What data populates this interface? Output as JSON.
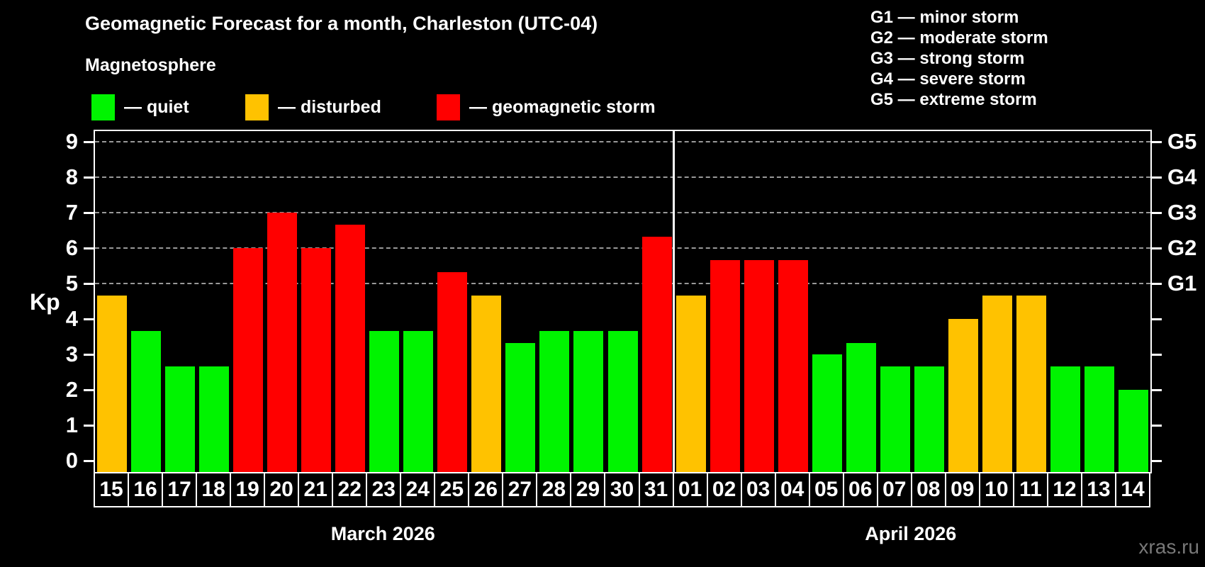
{
  "watermark": "xras.ru",
  "legend": {
    "title": "Magnetosphere",
    "items": [
      {
        "key": "quiet",
        "label": "— quiet"
      },
      {
        "key": "disturbed",
        "label": "— disturbed"
      },
      {
        "key": "storm",
        "label": "— geomagnetic storm"
      }
    ]
  },
  "g_scale_legend": [
    "G1 — minor storm",
    "G2 — moderate storm",
    "G3 — strong storm",
    "G4 — severe storm",
    "G5 — extreme storm"
  ],
  "chart_data": {
    "type": "bar",
    "title": "Geomagnetic Forecast for a month, Charleston (UTC-04)",
    "ylabel": "Kp",
    "ylim": [
      0,
      9
    ],
    "yticks": [
      0,
      1,
      2,
      3,
      4,
      5,
      6,
      7,
      8,
      9
    ],
    "gridlines_at": [
      5,
      6,
      7,
      8,
      9
    ],
    "grid": "dashed horizontal at storm levels only",
    "legend_position": "top-left",
    "right_axis": [
      {
        "kp": 5,
        "label": "G1"
      },
      {
        "kp": 6,
        "label": "G2"
      },
      {
        "kp": 7,
        "label": "G3"
      },
      {
        "kp": 8,
        "label": "G4"
      },
      {
        "kp": 9,
        "label": "G5"
      }
    ],
    "status_colors": {
      "quiet": "#00f400",
      "disturbed": "#ffc200",
      "storm": "#ff0000"
    },
    "months": [
      {
        "label": "March 2026",
        "bars": [
          {
            "day": "15",
            "kp": 4.67,
            "status": "disturbed"
          },
          {
            "day": "16",
            "kp": 3.67,
            "status": "quiet"
          },
          {
            "day": "17",
            "kp": 2.67,
            "status": "quiet"
          },
          {
            "day": "18",
            "kp": 2.67,
            "status": "quiet"
          },
          {
            "day": "19",
            "kp": 6.0,
            "status": "storm"
          },
          {
            "day": "20",
            "kp": 7.0,
            "status": "storm"
          },
          {
            "day": "21",
            "kp": 6.0,
            "status": "storm"
          },
          {
            "day": "22",
            "kp": 6.67,
            "status": "storm"
          },
          {
            "day": "23",
            "kp": 3.67,
            "status": "quiet"
          },
          {
            "day": "24",
            "kp": 3.67,
            "status": "quiet"
          },
          {
            "day": "25",
            "kp": 5.33,
            "status": "storm"
          },
          {
            "day": "26",
            "kp": 4.67,
            "status": "disturbed"
          },
          {
            "day": "27",
            "kp": 3.33,
            "status": "quiet"
          },
          {
            "day": "28",
            "kp": 3.67,
            "status": "quiet"
          },
          {
            "day": "29",
            "kp": 3.67,
            "status": "quiet"
          },
          {
            "day": "30",
            "kp": 3.67,
            "status": "quiet"
          },
          {
            "day": "31",
            "kp": 6.33,
            "status": "storm"
          }
        ]
      },
      {
        "label": "April 2026",
        "bars": [
          {
            "day": "01",
            "kp": 4.67,
            "status": "disturbed"
          },
          {
            "day": "02",
            "kp": 5.67,
            "status": "storm"
          },
          {
            "day": "03",
            "kp": 5.67,
            "status": "storm"
          },
          {
            "day": "04",
            "kp": 5.67,
            "status": "storm"
          },
          {
            "day": "05",
            "kp": 3.0,
            "status": "quiet"
          },
          {
            "day": "06",
            "kp": 3.33,
            "status": "quiet"
          },
          {
            "day": "07",
            "kp": 2.67,
            "status": "quiet"
          },
          {
            "day": "08",
            "kp": 2.67,
            "status": "quiet"
          },
          {
            "day": "09",
            "kp": 4.0,
            "status": "disturbed"
          },
          {
            "day": "10",
            "kp": 4.67,
            "status": "disturbed"
          },
          {
            "day": "11",
            "kp": 4.67,
            "status": "disturbed"
          },
          {
            "day": "12",
            "kp": 2.67,
            "status": "quiet"
          },
          {
            "day": "13",
            "kp": 2.67,
            "status": "quiet"
          },
          {
            "day": "14",
            "kp": 2.0,
            "status": "quiet"
          }
        ]
      }
    ]
  }
}
